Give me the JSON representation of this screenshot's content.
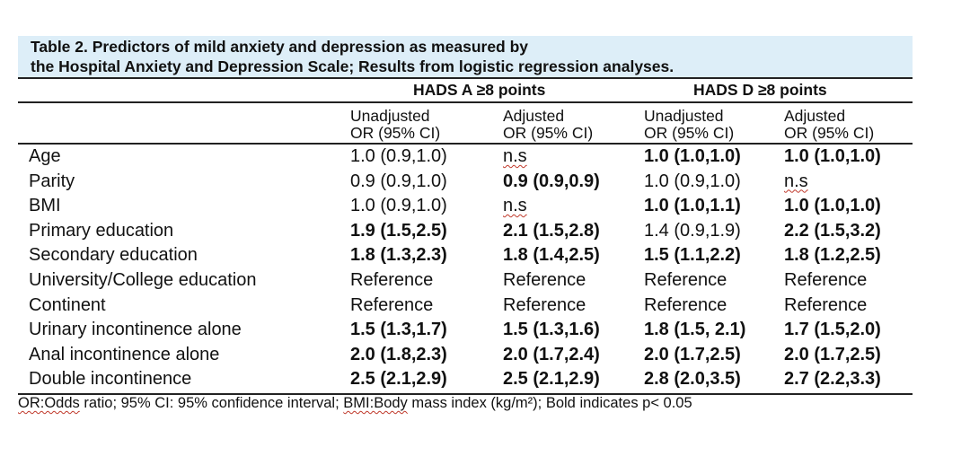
{
  "caption": {
    "line1": "Table 2. Predictors of mild anxiety and depression as measured by",
    "line2": "the Hospital Anxiety and Depression Scale; Results from logistic regression analyses."
  },
  "groups": [
    "HADS A ≥8 points",
    "HADS D ≥8 points"
  ],
  "subheaders": [
    {
      "l1": "Unadjusted",
      "l2": "OR (95% CI)"
    },
    {
      "l1": "Adjusted",
      "l2": "OR (95% CI)"
    },
    {
      "l1": "Unadjusted",
      "l2": "OR (95% CI)"
    },
    {
      "l1": "Adjusted",
      "l2": "OR (95% CI)"
    }
  ],
  "rows": [
    {
      "label": "Age",
      "cells": [
        {
          "text": "1.0 (0.9,1.0)",
          "bold": false
        },
        {
          "text": "n.s",
          "bold": false,
          "flag": true
        },
        {
          "text": "1.0 (1.0,1.0)",
          "bold": true
        },
        {
          "text": "1.0 (1.0,1.0)",
          "bold": true
        }
      ]
    },
    {
      "label": "Parity",
      "cells": [
        {
          "text": "0.9 (0.9,1.0)",
          "bold": false
        },
        {
          "text": "0.9 (0.9,0.9)",
          "bold": true
        },
        {
          "text": "1.0 (0.9,1.0)",
          "bold": false
        },
        {
          "text": "n.s",
          "bold": false,
          "flag": true
        }
      ]
    },
    {
      "label": "BMI",
      "cells": [
        {
          "text": "1.0 (0.9,1.0)",
          "bold": false
        },
        {
          "text": "n.s",
          "bold": false,
          "flag": true
        },
        {
          "text": "1.0 (1.0,1.1)",
          "bold": true
        },
        {
          "text": "1.0 (1.0,1.0)",
          "bold": true
        }
      ]
    },
    {
      "label": "Primary education",
      "cells": [
        {
          "text": "1.9 (1.5,2.5)",
          "bold": true
        },
        {
          "text": "2.1 (1.5,2.8)",
          "bold": true
        },
        {
          "text": "1.4 (0.9,1.9)",
          "bold": false
        },
        {
          "text": "2.2 (1.5,3.2)",
          "bold": true
        }
      ]
    },
    {
      "label": "Secondary education",
      "cells": [
        {
          "text": "1.8 (1.3,2.3)",
          "bold": true
        },
        {
          "text": "1.8 (1.4,2.5)",
          "bold": true
        },
        {
          "text": "1.5 (1.1,2.2)",
          "bold": true
        },
        {
          "text": "1.8 (1.2,2.5)",
          "bold": true
        }
      ]
    },
    {
      "label": "University/College education",
      "cells": [
        {
          "text": "Reference",
          "bold": false
        },
        {
          "text": "Reference",
          "bold": false
        },
        {
          "text": "Reference",
          "bold": false
        },
        {
          "text": "Reference",
          "bold": false
        }
      ]
    },
    {
      "label": "Continent",
      "cells": [
        {
          "text": "Reference",
          "bold": false
        },
        {
          "text": "Reference",
          "bold": false
        },
        {
          "text": "Reference",
          "bold": false
        },
        {
          "text": "Reference",
          "bold": false
        }
      ]
    },
    {
      "label": "Urinary incontinence alone",
      "cells": [
        {
          "text": "1.5 (1.3,1.7)",
          "bold": true
        },
        {
          "text": "1.5 (1.3,1.6)",
          "bold": true
        },
        {
          "text": "1.8 (1.5, 2.1)",
          "bold": true
        },
        {
          "text": "1.7 (1.5,2.0)",
          "bold": true
        }
      ]
    },
    {
      "label": "Anal incontinence alone",
      "cells": [
        {
          "text": "2.0 (1.8,2.3)",
          "bold": true
        },
        {
          "text": "2.0 (1.7,2.4)",
          "bold": true
        },
        {
          "text": "2.0 (1.7,2.5)",
          "bold": true
        },
        {
          "text": "2.0 (1.7,2.5)",
          "bold": true
        }
      ]
    },
    {
      "label": "Double incontinence",
      "cells": [
        {
          "text": "2.5 (2.1,2.9)",
          "bold": true
        },
        {
          "text": "2.5 (2.1,2.9)",
          "bold": true
        },
        {
          "text": "2.8 (2.0,3.5)",
          "bold": true
        },
        {
          "text": "2.7 (2.2,3.3)",
          "bold": true
        }
      ]
    }
  ],
  "footnote": {
    "or_abbr": "OR:Odds",
    "or_rest": " ratio; 95% CI: 95% confidence interval; ",
    "bmi_abbr": "BMI:Body",
    "bmi_rest": " mass index (kg/m²); Bold indicates p< 0.05"
  }
}
